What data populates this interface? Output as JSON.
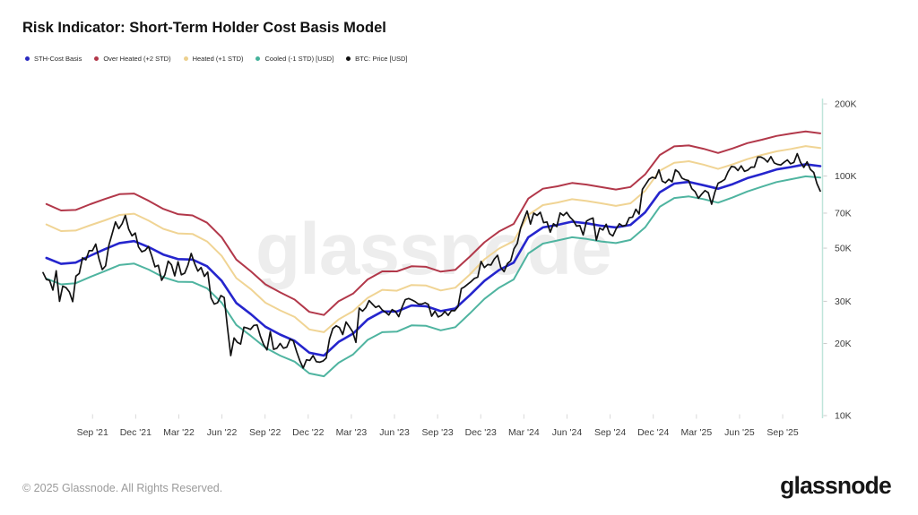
{
  "header": {
    "title": "Risk Indicator: Short-Term Holder Cost Basis Model"
  },
  "legend": {
    "items": [
      {
        "id": "sth_cost_basis",
        "label": "STH-Cost Basis",
        "color": "#2a2ac0"
      },
      {
        "id": "over_heated",
        "label": "Over Heated (+2 STD)",
        "color": "#b2384a"
      },
      {
        "id": "heated",
        "label": "Heated (+1 STD)",
        "color": "#ecd08e"
      },
      {
        "id": "cooled",
        "label": "Cooled (-1 STD) [USD]",
        "color": "#45b29b"
      },
      {
        "id": "btc_price",
        "label": "BTC: Price [USD]",
        "color": "#111111"
      }
    ]
  },
  "watermark": {
    "text": "glassnode"
  },
  "footer": {
    "copyright": "© 2025 Glassnode. All Rights Reserved.",
    "logo_text": "glassnode"
  },
  "axes": {
    "y": {
      "scale": "log",
      "axis_color": "#bfe5da",
      "tick_color": "#cccccc",
      "label_color": "#3d3d3d",
      "ticks": [
        {
          "label": "200K",
          "value": 200
        },
        {
          "label": "100K",
          "value": 100
        },
        {
          "label": "70K",
          "value": 70
        },
        {
          "label": "50K",
          "value": 50
        },
        {
          "label": "30K",
          "value": 30
        },
        {
          "label": "20K",
          "value": 20
        },
        {
          "label": "10K",
          "value": 10
        }
      ]
    },
    "x": {
      "tick_color": "#d9d9d9",
      "label_color": "#3d3d3d",
      "ticks": [
        {
          "label": "Sep '21",
          "t": 2021.667
        },
        {
          "label": "Dec '21",
          "t": 2021.917
        },
        {
          "label": "Mar '22",
          "t": 2022.167
        },
        {
          "label": "Jun '22",
          "t": 2022.417
        },
        {
          "label": "Sep '22",
          "t": 2022.667
        },
        {
          "label": "Dec '22",
          "t": 2022.917
        },
        {
          "label": "Mar '23",
          "t": 2023.167
        },
        {
          "label": "Jun '23",
          "t": 2023.417
        },
        {
          "label": "Sep '23",
          "t": 2023.667
        },
        {
          "label": "Dec '23",
          "t": 2023.917
        },
        {
          "label": "Mar '24",
          "t": 2024.167
        },
        {
          "label": "Jun '24",
          "t": 2024.417
        },
        {
          "label": "Sep '24",
          "t": 2024.667
        },
        {
          "label": "Dec '24",
          "t": 2024.917
        },
        {
          "label": "Mar '25",
          "t": 2025.167
        },
        {
          "label": "Jun '25",
          "t": 2025.417
        },
        {
          "label": "Sep '25",
          "t": 2025.667
        }
      ]
    }
  },
  "chart_data": {
    "type": "line",
    "title": "Risk Indicator: Short-Term Holder Cost Basis Model",
    "x_unit": "decimal_year",
    "y_unit": "USD thousands",
    "x_range": [
      2021.38,
      2025.885
    ],
    "ylim_K": [
      10,
      200
    ],
    "y_scale": "log",
    "grid": false,
    "legend_position": "top-left",
    "series": [
      {
        "id": "over_heated",
        "name": "Over Heated (+2 STD)",
        "color": "#b2384a",
        "width": 2,
        "t_start": 2021.4,
        "t_end": 2025.885,
        "values": [
          76.4,
          71.8,
          72.2,
          76.3,
          80.2,
          84.0,
          84.5,
          78.8,
          72.9,
          69.3,
          68.5,
          63.8,
          55.5,
          44.8,
          40.0,
          35.3,
          32.7,
          30.5,
          27.1,
          26.3,
          30.0,
          32.3,
          37.0,
          40.0,
          40.0,
          42.0,
          41.8,
          39.9,
          40.6,
          46.1,
          52.9,
          58.7,
          63.1,
          80.5,
          88.5,
          90.6,
          93.5,
          92.1,
          89.9,
          87.8,
          90.0,
          101.5,
          122.3,
          133.0,
          134.2,
          129.9,
          124.8,
          130.4,
          137.2,
          141.8,
          147.0,
          150.4,
          153.4,
          150.7
        ]
      },
      {
        "id": "heated",
        "name": "Heated (+1 STD)",
        "color": "#f0d494",
        "width": 2,
        "t_start": 2021.4,
        "t_end": 2025.885,
        "values": [
          62.8,
          58.9,
          59.2,
          62.3,
          65.3,
          68.8,
          69.6,
          65.1,
          60.2,
          57.6,
          57.3,
          53.3,
          46.4,
          37.5,
          33.7,
          29.6,
          27.5,
          25.8,
          22.9,
          22.3,
          25.2,
          27.3,
          31.0,
          33.5,
          33.2,
          35.1,
          34.9,
          33.3,
          34.2,
          38.8,
          44.9,
          49.8,
          53.5,
          68.8,
          75.6,
          77.5,
          80.0,
          78.7,
          76.9,
          75.0,
          76.9,
          86.7,
          105.2,
          113.5,
          115.3,
          111.6,
          107.1,
          111.9,
          117.6,
          122.4,
          126.7,
          129.7,
          133.3,
          130.9
        ]
      },
      {
        "id": "cooled",
        "name": "Cooled (-1 STD) [USD]",
        "color": "#4fb4a0",
        "width": 2,
        "t_start": 2021.4,
        "t_end": 2025.885,
        "values": [
          37.3,
          35.3,
          35.7,
          37.9,
          40.1,
          42.5,
          43.1,
          40.7,
          37.8,
          36.2,
          36.1,
          34.0,
          29.6,
          23.9,
          21.5,
          19.2,
          17.8,
          16.8,
          15.0,
          14.6,
          16.6,
          18.0,
          20.7,
          22.3,
          22.4,
          23.8,
          23.7,
          22.7,
          23.4,
          26.7,
          30.7,
          34.2,
          37.0,
          47.5,
          52.2,
          53.8,
          55.5,
          54.6,
          53.3,
          52.5,
          54.1,
          61.0,
          74.4,
          80.9,
          82.2,
          80.1,
          77.4,
          81.4,
          86.2,
          90.3,
          94.3,
          97.0,
          99.7,
          98.5
        ]
      },
      {
        "id": "sth_cost_basis",
        "name": "STH-Cost Basis",
        "color": "#2525cd",
        "width": 2.6,
        "t_start": 2021.4,
        "t_end": 2025.885,
        "values": [
          45.5,
          43.0,
          43.5,
          46.5,
          49.5,
          52.5,
          53.5,
          50.5,
          47.0,
          45.0,
          44.8,
          42.0,
          36.5,
          29.5,
          26.5,
          23.5,
          21.8,
          20.5,
          18.3,
          17.8,
          20.3,
          22.0,
          25.2,
          27.2,
          27.2,
          28.8,
          28.6,
          27.3,
          28.0,
          31.8,
          36.5,
          40.5,
          43.5,
          55.5,
          61.0,
          62.5,
          64.5,
          63.5,
          62.0,
          61.0,
          62.5,
          70.5,
          85.5,
          93.0,
          94.5,
          91.5,
          88.5,
          92.5,
          98.0,
          102.0,
          106.5,
          109.0,
          112.0,
          110.0
        ]
      },
      {
        "id": "btc_price",
        "name": "BTC: Price [USD]",
        "color": "#121212",
        "width": 1.7,
        "t_start": 2021.38,
        "t_end": 2025.885,
        "values": [
          39.5,
          37.0,
          36.7,
          33.4,
          40.2,
          30.0,
          34.7,
          34.2,
          32.8,
          29.9,
          38.2,
          39.2,
          45.6,
          44.7,
          48.8,
          48.8,
          52.0,
          45.0,
          40.7,
          42.2,
          51.5,
          57.4,
          64.3,
          60.3,
          63.2,
          68.5,
          60.1,
          56.3,
          57.8,
          50.6,
          48.3,
          48.9,
          50.8,
          46.5,
          41.8,
          42.4,
          36.7,
          38.7,
          44.1,
          42.6,
          38.3,
          43.9,
          38.7,
          39.3,
          42.4,
          47.5,
          43.2,
          40.1,
          41.5,
          38.1,
          39.7,
          31.0,
          29.2,
          29.6,
          31.7,
          31.1,
          23.4,
          17.8,
          21.1,
          20.2,
          19.9,
          23.4,
          23.2,
          22.9,
          23.8,
          23.9,
          21.4,
          19.8,
          18.8,
          22.4,
          18.9,
          19.1,
          20.0,
          19.1,
          19.3,
          20.8,
          20.5,
          18.5,
          16.9,
          15.8,
          17.1,
          17.0,
          17.8,
          16.8,
          16.7,
          16.9,
          17.4,
          20.9,
          23.1,
          23.7,
          23.3,
          21.8,
          24.6,
          23.5,
          22.4,
          20.2,
          28.1,
          27.3,
          28.2,
          30.2,
          29.2,
          28.3,
          28.7,
          27.6,
          27.0,
          26.3,
          27.7,
          27.2,
          25.9,
          28.3,
          30.5,
          30.8,
          30.4,
          29.9,
          29.2,
          29.2,
          29.6,
          29.1,
          26.0,
          27.3,
          25.8,
          26.2,
          27.2,
          26.2,
          27.4,
          27.4,
          28.5,
          33.9,
          34.5,
          35.4,
          36.3,
          37.4,
          37.8,
          44.0,
          41.5,
          42.7,
          42.5,
          45.0,
          46.7,
          41.5,
          39.9,
          43.1,
          44.3,
          49.7,
          52.3,
          60.6,
          66.1,
          71.5,
          63.0,
          70.0,
          68.5,
          70.6,
          63.9,
          64.3,
          58.3,
          63.2,
          61.5,
          70.1,
          68.4,
          70.5,
          67.3,
          65.2,
          61.8,
          62.1,
          56.7,
          64.8,
          66.0,
          66.8,
          54.0,
          60.6,
          59.5,
          62.9,
          57.5,
          56.2,
          60.1,
          63.2,
          61.8,
          62.3,
          67.0,
          67.4,
          72.7,
          69.4,
          88.0,
          92.3,
          97.0,
          98.8,
          97.9,
          106.1,
          95.2,
          93.7,
          96.9,
          94.5,
          106.1,
          103.7,
          98.0,
          96.5,
          95.7,
          88.6,
          86.0,
          80.7,
          84.0,
          86.9,
          85.2,
          76.3,
          85.6,
          93.4,
          94.8,
          96.8,
          104.1,
          109.6,
          109.0,
          105.4,
          110.2,
          104.6,
          105.9,
          108.9,
          108.9,
          119.9,
          119.9,
          118.0,
          114.4,
          120.5,
          113.4,
          111.9,
          111.2,
          114.1,
          116.8,
          112.4,
          114.0,
          124.0,
          113.9,
          108.6,
          114.6,
          106.5,
          103.5,
          93.0,
          86.5
        ]
      }
    ]
  }
}
